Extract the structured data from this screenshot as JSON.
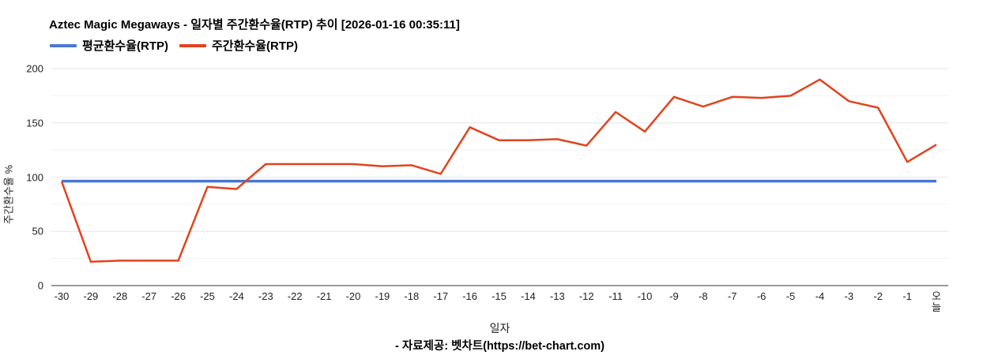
{
  "title": "Aztec Magic Megaways - 일자별 주간환수율(RTP) 추이 [2026-01-16 00:35:11]",
  "legend": {
    "items": [
      {
        "label": "평균환수율(RTP)",
        "color": "#4a77d4"
      },
      {
        "label": "주간환수율(RTP)",
        "color": "#e2431e"
      }
    ]
  },
  "axes": {
    "x_title": "일자",
    "y_title": "주간환수율 %"
  },
  "footer": {
    "credit": "- 자료제공: 벳차트(https://bet-chart.com)"
  },
  "chart_data": {
    "type": "line",
    "title": "Aztec Magic Megaways - 일자별 주간환수율(RTP) 추이 [2026-01-16 00:35:11]",
    "xlabel": "일자",
    "ylabel": "주간환수율 %",
    "ylim": [
      0,
      200
    ],
    "yticks": [
      0,
      50,
      100,
      150,
      200
    ],
    "minor_grid_step": 25,
    "grid": true,
    "legend_position": "top",
    "categories": [
      "-30",
      "-29",
      "-28",
      "-27",
      "-26",
      "-25",
      "-24",
      "-23",
      "-22",
      "-21",
      "-20",
      "-19",
      "-18",
      "-17",
      "-16",
      "-15",
      "-14",
      "-13",
      "-12",
      "-11",
      "-10",
      "-9",
      "-8",
      "-7",
      "-6",
      "-5",
      "-4",
      "-3",
      "-2",
      "-1",
      "오늘"
    ],
    "series": [
      {
        "name": "평균환수율(RTP)",
        "color": "#4a77d4",
        "constant": 96.3
      },
      {
        "name": "주간환수율(RTP)",
        "color": "#e2431e",
        "values": [
          96,
          22,
          23,
          23,
          23,
          91,
          89,
          112,
          112,
          112,
          112,
          110,
          111,
          103,
          146,
          134,
          134,
          135,
          129,
          160,
          142,
          174,
          165,
          174,
          173,
          175,
          190,
          170,
          164,
          114,
          130
        ]
      }
    ]
  }
}
